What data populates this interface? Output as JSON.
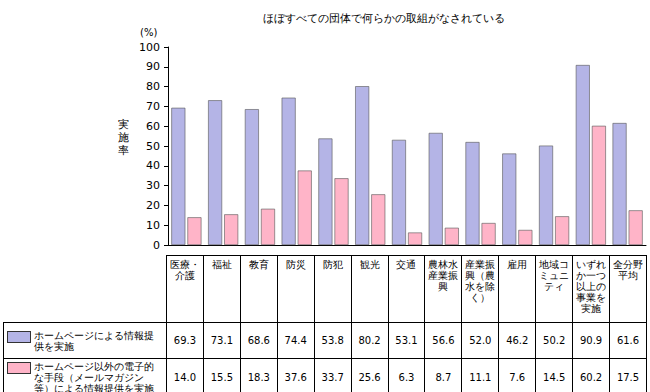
{
  "chart_data": {
    "type": "bar",
    "title": "ほぼすべての団体で何らかの取組がなされている",
    "ylabel": "実施率",
    "annotations": [
      "(%)"
    ],
    "categories": [
      "医療・介護",
      "福祉",
      "教育",
      "防災",
      "防犯",
      "観光",
      "交通",
      "農林水産業振興",
      "産業振興（農水を除く）",
      "雇用",
      "地域コミュニティ",
      "いずれか一つ以上の事業を実施",
      "全分野平均"
    ],
    "series": [
      {
        "name": "ホームページによる情報提供を実施",
        "color": "#b4b4e6",
        "values": [
          69.3,
          73.1,
          68.6,
          74.4,
          53.8,
          80.2,
          53.1,
          56.6,
          52.0,
          46.2,
          50.2,
          90.9,
          61.6
        ],
        "value_labels": [
          "69.3",
          "73.1",
          "68.6",
          "74.4",
          "53.8",
          "80.2",
          "53.1",
          "56.6",
          "52.0",
          "46.2",
          "50.2",
          "90.9",
          "61.6"
        ]
      },
      {
        "name": "ホームページ以外の電子的な手段（メールマガジン等）による情報提供を実施",
        "color": "#ffb4c8",
        "values": [
          14.0,
          15.5,
          18.3,
          37.6,
          33.7,
          25.6,
          6.3,
          8.7,
          11.1,
          7.6,
          14.5,
          60.2,
          17.5
        ],
        "value_labels": [
          "14.0",
          "15.5",
          "18.3",
          "37.6",
          "33.7",
          "25.6",
          "6.3",
          "8.7",
          "11.1",
          "7.6",
          "14.5",
          "60.2",
          "17.5"
        ]
      }
    ],
    "ylim": [
      0,
      100
    ],
    "yticks": [
      0,
      10,
      20,
      30,
      40,
      50,
      60,
      70,
      80,
      90,
      100
    ],
    "grid": false,
    "data_labels": true
  }
}
